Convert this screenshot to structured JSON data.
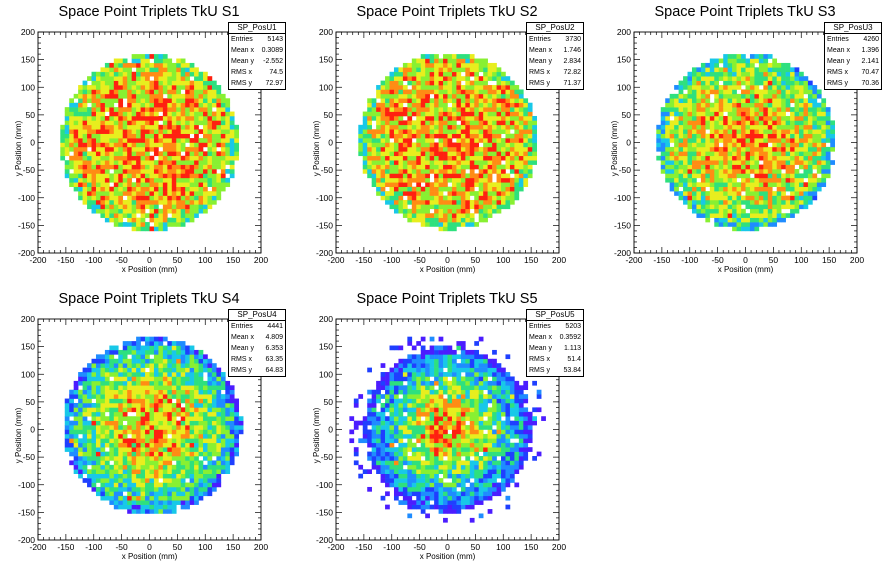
{
  "chart_data": [
    {
      "type": "heatmap",
      "title": "Space Point Triplets TkU S1",
      "xlabel": "x Position (mm)",
      "ylabel": "y Position (mm)",
      "xlim": [
        -200,
        200
      ],
      "ylim": [
        -200,
        200
      ],
      "xticks": [
        "-200",
        "-150",
        "-100",
        "-50",
        "0",
        "50",
        "100",
        "150",
        "200"
      ],
      "yticks": [
        "-200",
        "-150",
        "-100",
        "-50",
        "0",
        "50",
        "100",
        "150",
        "200"
      ],
      "radius": 160,
      "center": [
        0,
        0
      ],
      "spread": 250,
      "seed": 11,
      "stats": {
        "name": "SP_PosU1",
        "rows": [
          [
            "Entries",
            "5143"
          ],
          [
            "Mean x",
            "0.3089"
          ],
          [
            "Mean y",
            "-2.552"
          ],
          [
            "RMS x",
            "74.5"
          ],
          [
            "RMS y",
            "72.97"
          ]
        ]
      }
    },
    {
      "type": "heatmap",
      "title": "Space Point Triplets TkU S2",
      "xlabel": "x Position (mm)",
      "ylabel": "y Position (mm)",
      "xlim": [
        -200,
        200
      ],
      "ylim": [
        -200,
        200
      ],
      "xticks": [
        "-200",
        "-150",
        "-100",
        "-50",
        "0",
        "50",
        "100",
        "150",
        "200"
      ],
      "yticks": [
        "-200",
        "-150",
        "-100",
        "-50",
        "0",
        "50",
        "100",
        "150",
        "200"
      ],
      "radius": 160,
      "center": [
        2,
        3
      ],
      "spread": 250,
      "seed": 23,
      "stats": {
        "name": "SP_PosU2",
        "rows": [
          [
            "Entries",
            "3730"
          ],
          [
            "Mean x",
            "1.746"
          ],
          [
            "Mean y",
            "2.834"
          ],
          [
            "RMS x",
            "72.82"
          ],
          [
            "RMS y",
            "71.37"
          ]
        ]
      }
    },
    {
      "type": "heatmap",
      "title": "Space Point Triplets TkU S3",
      "xlabel": "x Position (mm)",
      "ylabel": "y Position (mm)",
      "xlim": [
        -200,
        200
      ],
      "ylim": [
        -200,
        200
      ],
      "xticks": [
        "-200",
        "-150",
        "-100",
        "-50",
        "0",
        "50",
        "100",
        "150",
        "200"
      ],
      "yticks": [
        "-200",
        "-150",
        "-100",
        "-50",
        "0",
        "50",
        "100",
        "150",
        "200"
      ],
      "radius": 160,
      "center": [
        1,
        2
      ],
      "spread": 160,
      "seed": 37,
      "stats": {
        "name": "SP_PosU3",
        "rows": [
          [
            "Entries",
            "4260"
          ],
          [
            "Mean x",
            "1.396"
          ],
          [
            "Mean y",
            "2.141"
          ],
          [
            "RMS x",
            "70.47"
          ],
          [
            "RMS y",
            "70.36"
          ]
        ]
      }
    },
    {
      "type": "heatmap",
      "title": "Space Point Triplets TkU S4",
      "xlabel": "x Position (mm)",
      "ylabel": "y Position (mm)",
      "xlim": [
        -200,
        200
      ],
      "ylim": [
        -200,
        200
      ],
      "xticks": [
        "-200",
        "-150",
        "-100",
        "-50",
        "0",
        "50",
        "100",
        "150",
        "200"
      ],
      "yticks": [
        "-200",
        "-150",
        "-100",
        "-50",
        "0",
        "50",
        "100",
        "150",
        "200"
      ],
      "radius": 160,
      "center": [
        5,
        6
      ],
      "spread": 110,
      "seed": 51,
      "stats": {
        "name": "SP_PosU4",
        "rows": [
          [
            "Entries",
            "4441"
          ],
          [
            "Mean x",
            "4.809"
          ],
          [
            "Mean y",
            "6.353"
          ],
          [
            "RMS x",
            "63.35"
          ],
          [
            "RMS y",
            "64.83"
          ]
        ]
      }
    },
    {
      "type": "heatmap",
      "title": "Space Point Triplets TkU S5",
      "xlabel": "x Position (mm)",
      "ylabel": "y Position (mm)",
      "xlim": [
        -200,
        200
      ],
      "ylim": [
        -200,
        200
      ],
      "xticks": [
        "-200",
        "-150",
        "-100",
        "-50",
        "0",
        "50",
        "100",
        "150",
        "200"
      ],
      "yticks": [
        "-200",
        "-150",
        "-100",
        "-50",
        "0",
        "50",
        "100",
        "150",
        "200"
      ],
      "radius": 150,
      "center": [
        0,
        1
      ],
      "spread": 80,
      "seed": 67,
      "stats": {
        "name": "SP_PosU5",
        "rows": [
          [
            "Entries",
            "5203"
          ],
          [
            "Mean x",
            "0.3592"
          ],
          [
            "Mean y",
            "1.113"
          ],
          [
            "RMS x",
            "51.4"
          ],
          [
            "RMS y",
            "53.84"
          ]
        ]
      }
    }
  ],
  "palette": [
    "#4b1cff",
    "#1f3fff",
    "#1f8cff",
    "#18c8e8",
    "#2ee07e",
    "#88f032",
    "#e8ee1e",
    "#ff8c14",
    "#ff2010"
  ]
}
